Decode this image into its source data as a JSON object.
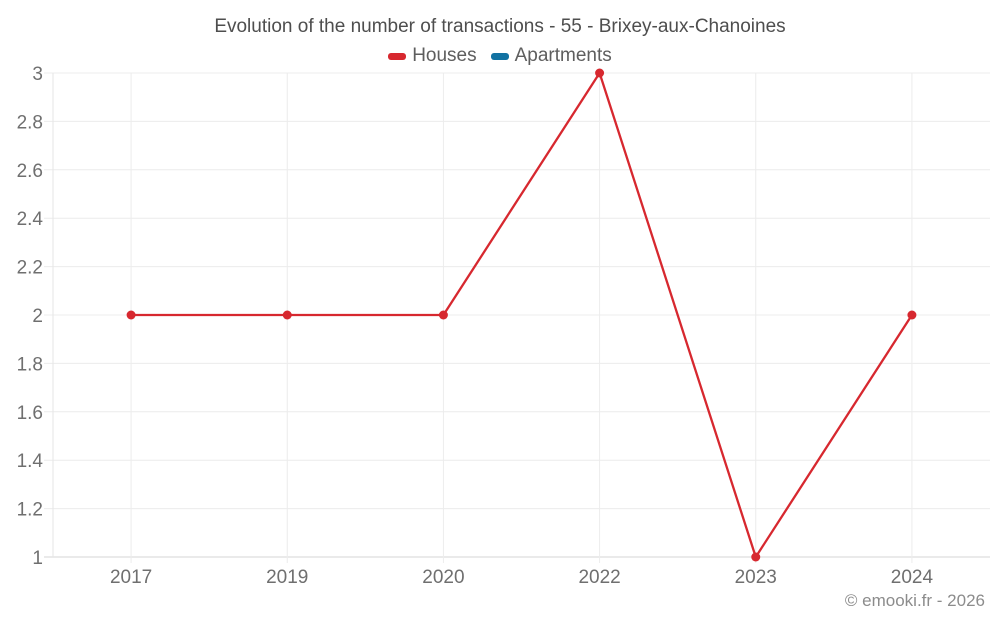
{
  "chart": {
    "title": "Evolution of the number of transactions - 55 - Brixey-aux-Chanoines",
    "footer": "© emooki.fr - 2026"
  },
  "chart_data": {
    "type": "line",
    "title": "Evolution of the number of transactions - 55 - Brixey-aux-Chanoines",
    "categories": [
      "2017",
      "2019",
      "2020",
      "2022",
      "2023",
      "2024"
    ],
    "series": [
      {
        "name": "Houses",
        "color": "#d7282f",
        "values": [
          2,
          2,
          2,
          3,
          1,
          2
        ]
      },
      {
        "name": "Apartments",
        "color": "#1272a2",
        "values": []
      }
    ],
    "xlabel": "",
    "ylabel": "",
    "ylim": [
      1,
      3
    ],
    "y_ticks": [
      1,
      1.2,
      1.4,
      1.6,
      1.8,
      2,
      2.2,
      2.4,
      2.6,
      2.8,
      3
    ],
    "y_tick_labels": [
      "1",
      "1.2",
      "1.4",
      "1.6",
      "1.8",
      "2",
      "2.2",
      "2.4",
      "2.6",
      "2.8",
      "3"
    ],
    "grid": true,
    "legend_position": "top",
    "marker_radius": 4.5,
    "line_width": 2.3
  },
  "colors": {
    "grid": "#ececec",
    "axis_left": "#e6e6e6",
    "axis_bottom": "#d6d6d6",
    "tick_label": "#6f6f6f",
    "title_text": "#4e4e4e",
    "legend_text": "#5e5e5e",
    "footer_text": "#8c8c8c"
  }
}
